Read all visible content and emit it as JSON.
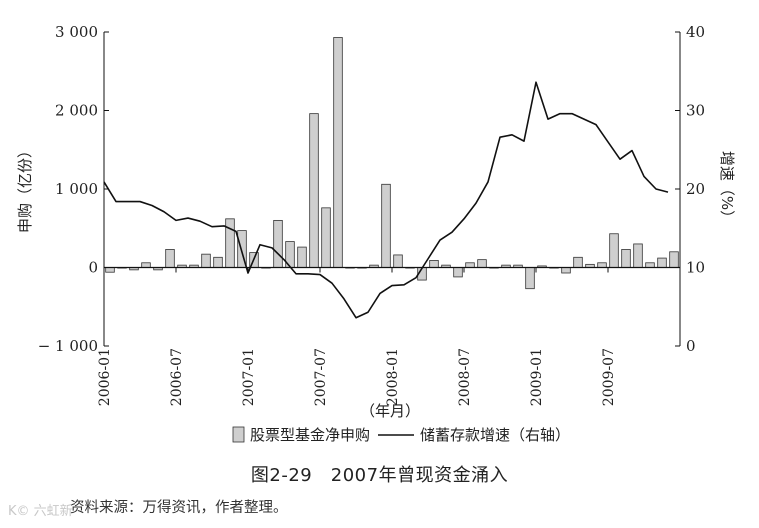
{
  "figure": {
    "caption": "图2-29　2007年曾现资金涌入",
    "source": "资料来源：万得资讯，作者整理。",
    "watermark": "K© 六虹新"
  },
  "chart_data": {
    "type": "bar+line",
    "categories": [
      "2006-01",
      "2006-02",
      "2006-03",
      "2006-04",
      "2006-05",
      "2006-06",
      "2006-07",
      "2006-08",
      "2006-09",
      "2006-10",
      "2006-11",
      "2006-12",
      "2007-01",
      "2007-02",
      "2007-03",
      "2007-04",
      "2007-05",
      "2007-06",
      "2007-07",
      "2007-08",
      "2007-09",
      "2007-10",
      "2007-11",
      "2007-12",
      "2008-01",
      "2008-02",
      "2008-03",
      "2008-04",
      "2008-05",
      "2008-06",
      "2008-07",
      "2008-08",
      "2008-09",
      "2008-10",
      "2008-11",
      "2008-12",
      "2009-01",
      "2009-02",
      "2009-03",
      "2009-04",
      "2009-05",
      "2009-06",
      "2009-07",
      "2009-08",
      "2009-09",
      "2009-10",
      "2009-11",
      "2009-12"
    ],
    "xticks": [
      "2006-01",
      "2006-07",
      "2007-01",
      "2007-07",
      "2008-01",
      "2008-07",
      "2009-01",
      "2009-07"
    ],
    "xlabel": "（年月）",
    "y_left": {
      "label": "申购（亿份）",
      "min": -1000,
      "max": 3000,
      "ticks": [
        3000,
        2000,
        1000,
        0,
        -1000
      ],
      "tick_labels": [
        "3 000",
        "2 000",
        "1 000",
        "0",
        "− 1 000"
      ]
    },
    "y_right": {
      "label": "增速（%）",
      "min": 0,
      "max": 40,
      "ticks": [
        40,
        30,
        20,
        10,
        0
      ],
      "tick_labels": [
        "40",
        "30",
        "20",
        "10",
        "0"
      ]
    },
    "series": [
      {
        "name": "股票型基金净申购",
        "type": "bar",
        "axis": "left",
        "color": "#cfcfcf",
        "values": [
          -60,
          0,
          -30,
          60,
          -30,
          230,
          30,
          30,
          170,
          130,
          620,
          470,
          190,
          0,
          600,
          330,
          260,
          1960,
          760,
          2930,
          0,
          0,
          30,
          1060,
          160,
          0,
          -160,
          90,
          30,
          -120,
          60,
          100,
          0,
          30,
          30,
          -270,
          20,
          0,
          -70,
          130,
          40,
          60,
          430,
          230,
          300,
          60,
          120,
          200
        ]
      },
      {
        "name": "储蓄存款增速（右轴）",
        "type": "line",
        "axis": "right",
        "color": "#111111",
        "values": [
          20.9,
          18.4,
          18.4,
          18.4,
          17.9,
          17.1,
          16.0,
          16.3,
          15.9,
          15.2,
          15.3,
          14.6,
          9.3,
          12.9,
          12.5,
          11.0,
          9.2,
          9.2,
          9.1,
          8.0,
          6.0,
          3.6,
          4.3,
          6.7,
          7.7,
          7.8,
          8.7,
          11.1,
          13.5,
          14.5,
          16.2,
          18.2,
          20.9,
          26.6,
          26.9,
          26.1,
          33.6,
          28.9,
          29.6,
          29.6,
          28.9,
          28.2,
          26.0,
          23.8,
          24.9,
          21.6,
          20.0,
          19.6
        ]
      }
    ]
  }
}
